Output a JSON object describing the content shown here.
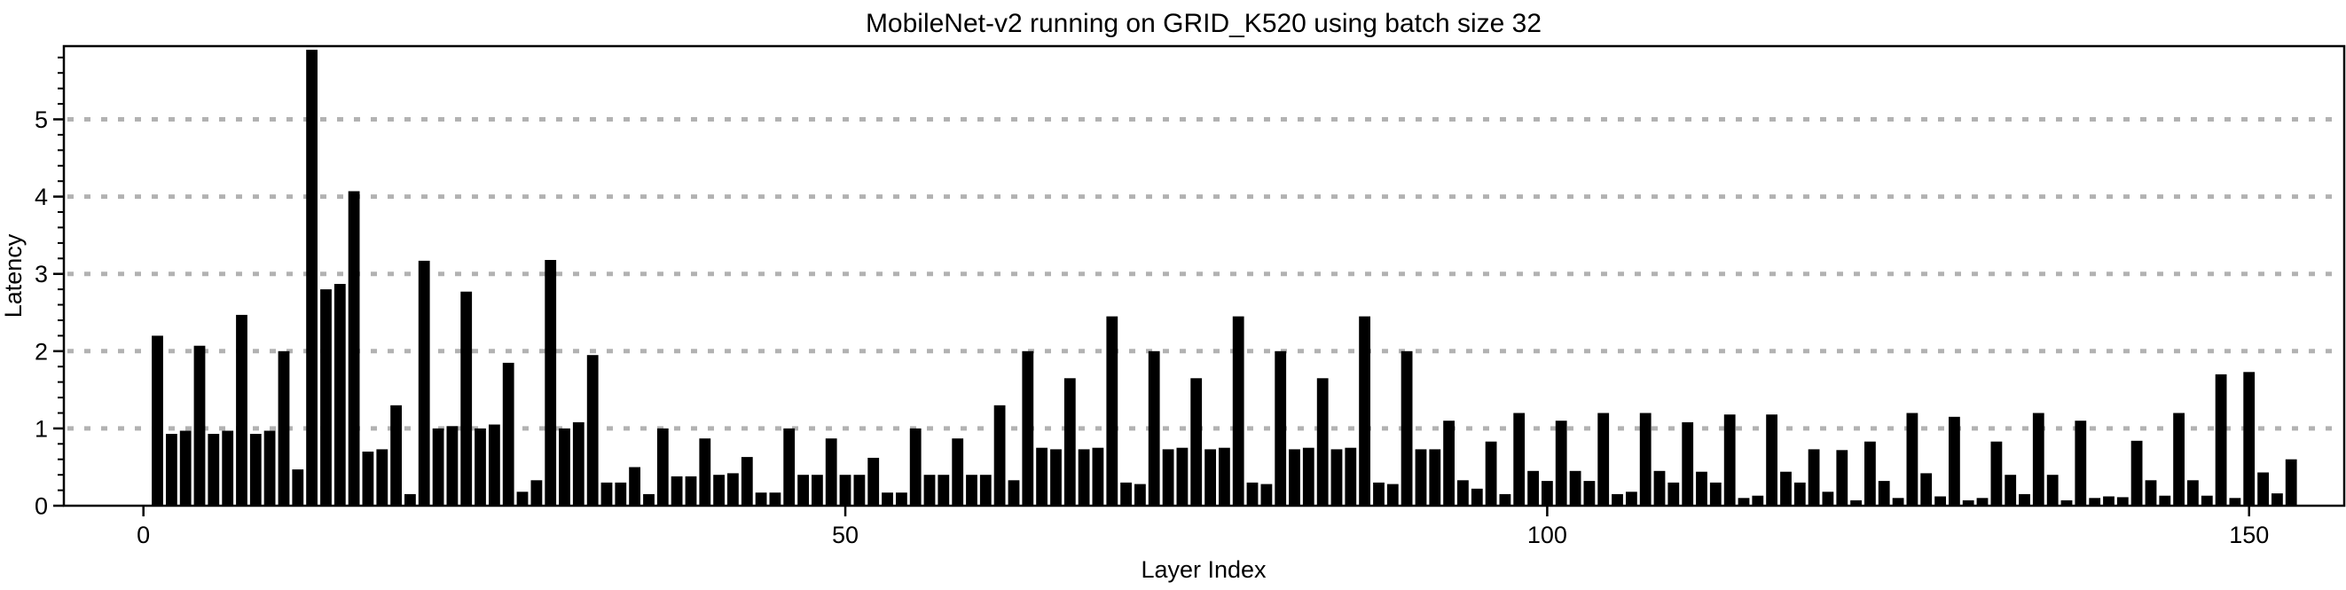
{
  "chart_data": {
    "type": "bar",
    "title": "MobileNet-v2 running on GRID_K520 using batch size 32",
    "xlabel": "Layer Index",
    "ylabel": "Latency",
    "x_start_index": 1,
    "values": [
      2.2,
      0.93,
      0.97,
      2.07,
      0.93,
      0.97,
      2.47,
      0.93,
      0.97,
      2.0,
      0.47,
      5.9,
      2.8,
      2.87,
      4.07,
      0.7,
      0.73,
      1.3,
      0.15,
      3.17,
      1.0,
      1.03,
      2.77,
      1.0,
      1.05,
      1.85,
      0.18,
      0.33,
      3.18,
      1.0,
      1.08,
      1.95,
      0.3,
      0.3,
      0.5,
      0.15,
      1.0,
      0.38,
      0.38,
      0.87,
      0.4,
      0.42,
      0.63,
      0.17,
      0.17,
      1.0,
      0.4,
      0.4,
      0.87,
      0.4,
      0.4,
      0.62,
      0.17,
      0.17,
      1.0,
      0.4,
      0.4,
      0.87,
      0.4,
      0.4,
      1.3,
      0.33,
      2.0,
      0.75,
      0.73,
      1.65,
      0.73,
      0.75,
      2.45,
      0.3,
      0.28,
      2.0,
      0.73,
      0.75,
      1.65,
      0.73,
      0.75,
      2.45,
      0.3,
      0.28,
      2.0,
      0.73,
      0.75,
      1.65,
      0.73,
      0.75,
      2.45,
      0.3,
      0.28,
      2.0,
      0.73,
      0.73,
      1.1,
      0.33,
      0.22,
      0.83,
      0.15,
      1.2,
      0.45,
      0.32,
      1.1,
      0.45,
      0.32,
      1.2,
      0.15,
      0.18,
      1.2,
      0.45,
      0.3,
      1.08,
      0.44,
      0.3,
      1.18,
      0.1,
      0.13,
      1.18,
      0.44,
      0.3,
      0.73,
      0.18,
      0.72,
      0.07,
      0.83,
      0.32,
      0.1,
      1.2,
      0.42,
      0.12,
      1.15,
      0.07,
      0.1,
      0.83,
      0.4,
      0.15,
      1.2,
      0.4,
      0.07,
      1.1,
      0.1,
      0.12,
      0.11,
      0.84,
      0.33,
      0.13,
      1.2,
      0.33,
      0.13,
      1.7,
      0.1,
      1.73,
      0.43,
      0.16,
      0.6
    ],
    "xticks": [
      0,
      50,
      100,
      150
    ],
    "yticks": [
      0,
      1,
      2,
      3,
      4,
      5
    ],
    "y_minor_step": 0.2,
    "ylim": [
      0,
      5.95
    ],
    "grid": "horizontal-dotted",
    "legend": "none",
    "bar_color": "#000000",
    "grid_color": "#b2b2b2",
    "background_color": "#ffffff"
  }
}
